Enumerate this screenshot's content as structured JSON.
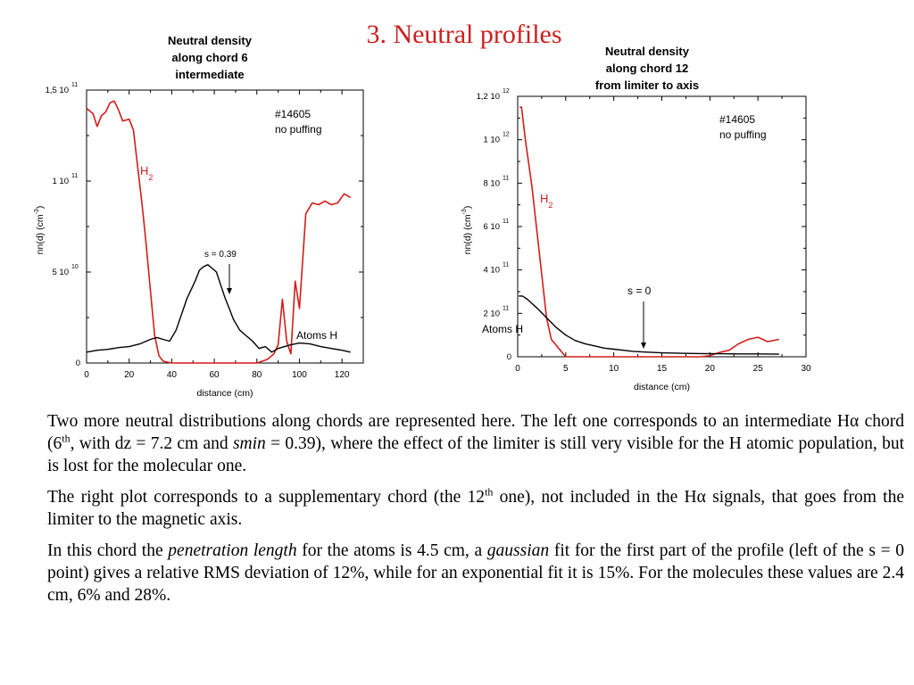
{
  "slide": {
    "title": "3. Neutral profiles"
  },
  "colors": {
    "h2": "#d41c1c",
    "atoms": "#000000",
    "title": "#cc1f1f"
  },
  "chart_data": [
    {
      "type": "line",
      "title_lines": [
        "Neutral density",
        "along chord 6",
        "intermediate"
      ],
      "xlabel": "distance (cm)",
      "ylabel": "nn(d) (cm",
      "ylabel_exp": "-3",
      "xlim": [
        0,
        130
      ],
      "ylim": [
        0,
        150000000000.0
      ],
      "xticks": [
        0,
        20,
        40,
        60,
        80,
        100,
        120
      ],
      "xtick_labels": [
        "0",
        "20",
        "40",
        "60",
        "80",
        "100",
        "120"
      ],
      "yticks": [
        0,
        50000000000.0,
        100000000000.0,
        150000000000.0
      ],
      "ytick_labels": [
        {
          "m": "0",
          "e": ""
        },
        {
          "m": "5 10",
          "e": "10"
        },
        {
          "m": "1 10",
          "e": "11"
        },
        {
          "m": "1,5 10",
          "e": "11"
        }
      ],
      "annotations": {
        "shot": "#14605",
        "puffing": "no puffing",
        "h2_label": "H",
        "h2_sub": "2",
        "s_label": "s = 0.39",
        "atoms_label": "Atoms H"
      },
      "series": [
        {
          "key": "h2",
          "x": [
            0,
            3,
            5,
            7,
            9,
            11,
            13,
            15,
            17,
            20,
            22,
            24,
            26,
            28,
            30,
            32,
            34,
            36,
            40,
            50,
            60,
            70,
            80,
            85,
            88,
            90,
            92,
            94,
            96,
            98,
            100,
            103,
            106,
            109,
            112,
            115,
            118,
            121,
            124
          ],
          "y": [
            140000000000.0,
            137000000000.0,
            130000000000.0,
            136000000000.0,
            138000000000.0,
            143000000000.0,
            144000000000.0,
            139000000000.0,
            133000000000.0,
            134000000000.0,
            128000000000.0,
            108000000000.0,
            88000000000.0,
            65000000000.0,
            40000000000.0,
            15000000000.0,
            4000000000.0,
            1000000000.0,
            0,
            0,
            0,
            0,
            0,
            2000000000.0,
            5000000000.0,
            10000000000.0,
            35000000000.0,
            12000000000.0,
            5000000000.0,
            45000000000.0,
            30000000000.0,
            82000000000.0,
            88000000000.0,
            87000000000.0,
            89000000000.0,
            87000000000.0,
            88000000000.0,
            93000000000.0,
            91000000000.0
          ]
        },
        {
          "key": "atoms",
          "x": [
            0,
            5,
            10,
            15,
            20,
            25,
            30,
            33,
            36,
            39,
            42,
            45,
            47,
            49,
            51,
            53,
            55,
            57,
            59,
            61,
            63,
            65,
            67,
            69,
            72,
            75,
            78,
            81,
            84,
            87,
            90,
            93,
            96,
            100,
            105,
            110,
            115,
            120,
            124
          ],
          "y": [
            6000000000.0,
            7000000000.0,
            7500000000.0,
            8500000000.0,
            9000000000.0,
            10500000000.0,
            13000000000.0,
            14000000000.0,
            13000000000.0,
            12000000000.0,
            18000000000.0,
            28000000000.0,
            35000000000.0,
            40000000000.0,
            45000000000.0,
            51000000000.0,
            53000000000.0,
            54000000000.0,
            52000000000.0,
            50000000000.0,
            43000000000.0,
            36000000000.0,
            30000000000.0,
            24000000000.0,
            18000000000.0,
            15000000000.0,
            12000000000.0,
            8000000000.0,
            9000000000.0,
            6000000000.0,
            8000000000.0,
            9000000000.0,
            10000000000.0,
            11000000000.0,
            10500000000.0,
            9000000000.0,
            8000000000.0,
            7000000000.0,
            6000000000.0
          ]
        }
      ]
    },
    {
      "type": "line",
      "title_lines": [
        "Neutral density",
        "along chord 12",
        "from limiter to axis"
      ],
      "xlabel": "distance (cm)",
      "ylabel": "nn(d) (cm",
      "ylabel_exp": "-3",
      "xlim": [
        0,
        30
      ],
      "ylim": [
        0,
        1200000000000.0
      ],
      "xticks": [
        0,
        5,
        10,
        15,
        20,
        25,
        30
      ],
      "xtick_labels": [
        "0",
        "5",
        "10",
        "15",
        "20",
        "25",
        "30"
      ],
      "yticks": [
        0,
        200000000000.0,
        400000000000.0,
        600000000000.0,
        800000000000.0,
        1000000000000.0,
        1200000000000.0
      ],
      "ytick_labels": [
        {
          "m": "0",
          "e": ""
        },
        {
          "m": "2 10",
          "e": "11"
        },
        {
          "m": "4 10",
          "e": "11"
        },
        {
          "m": "6 10",
          "e": "11"
        },
        {
          "m": "8 10",
          "e": "11"
        },
        {
          "m": "1 10",
          "e": "12"
        },
        {
          "m": "1,2 10",
          "e": "12"
        }
      ],
      "annotations": {
        "shot": "#14605",
        "puffing": "no puffing",
        "h2_label": "H",
        "h2_sub": "2",
        "s_label": "s = 0",
        "atoms_label": "Atoms H"
      },
      "series": [
        {
          "key": "h2",
          "x": [
            0.2,
            0.4,
            0.8,
            1.5,
            2.0,
            2.5,
            3.0,
            3.5,
            5,
            10,
            15,
            19,
            20,
            21,
            22,
            23,
            24,
            25,
            26,
            27.2
          ],
          "y": [
            1150000000000.0,
            1150000000000.0,
            1000000000000.0,
            780000000000.0,
            580000000000.0,
            380000000000.0,
            180000000000.0,
            80000000000.0,
            0,
            0,
            0,
            0,
            5000000000.0,
            20000000000.0,
            30000000000.0,
            60000000000.0,
            80000000000.0,
            90000000000.0,
            70000000000.0,
            80000000000.0
          ]
        },
        {
          "key": "atoms",
          "x": [
            0.1,
            0.5,
            1,
            1.5,
            2,
            3,
            4,
            5,
            6,
            7,
            8,
            9,
            10,
            11,
            12,
            13,
            14,
            15,
            17,
            19,
            21,
            23,
            25,
            27.2
          ],
          "y": [
            280000000000.0,
            280000000000.0,
            265000000000.0,
            245000000000.0,
            225000000000.0,
            180000000000.0,
            135000000000.0,
            100000000000.0,
            75000000000.0,
            60000000000.0,
            50000000000.0,
            40000000000.0,
            35000000000.0,
            30000000000.0,
            25000000000.0,
            22000000000.0,
            20000000000.0,
            18000000000.0,
            16000000000.0,
            15000000000.0,
            14000000000.0,
            13000000000.0,
            13000000000.0,
            12000000000.0
          ]
        }
      ]
    }
  ],
  "text": {
    "p1": {
      "a": "Two more neutral distributions along chords are represented here. The left one corresponds to an intermediate H",
      "alpha": "α",
      "b": " chord (6",
      "sup": "th",
      "c": ", with dz = 7.2 cm and ",
      "smin": "smin",
      "d": " = 0.39), where the effect of the limiter is still very visible for the H atomic population, but is lost for the molecular one."
    },
    "p2": {
      "a": "The right plot corresponds to a supplementary chord (the 12",
      "sup": "th",
      "b": " one), not included in the H",
      "alpha": "α",
      "c": " signals, that goes from the limiter to the magnetic axis."
    },
    "p3": {
      "a": "In this chord the ",
      "pen": "penetration length",
      "b": " for the atoms is 4.5 cm, a ",
      "gauss": "gaussian",
      "c": " fit for the first part of the profile (left of the s = 0 point) gives a relative RMS deviation of 12%, while for an exponential fit it is 15%. For the molecules these values are 2.4 cm, 6% and 28%."
    }
  }
}
